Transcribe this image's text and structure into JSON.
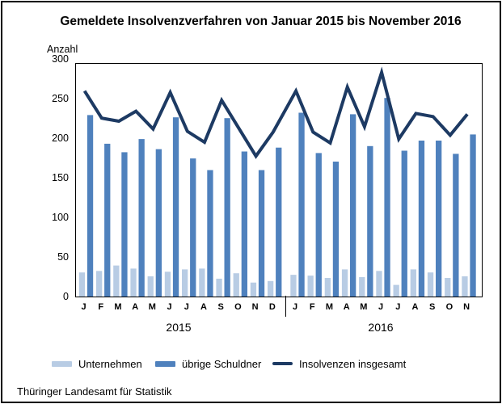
{
  "title": "Gemeldete Insolvenzverfahren von Januar 2015 bis November 2016",
  "y_axis": {
    "label": "Anzahl"
  },
  "footer": "Thüringer Landesamt für Statistik",
  "chart_data": {
    "type": "bar",
    "title": "Gemeldete Insolvenzverfahren von Januar 2015 bis November 2016",
    "ylabel": "Anzahl",
    "ylim": [
      0,
      300
    ],
    "yticks": [
      0,
      50,
      100,
      150,
      200,
      250,
      300
    ],
    "grid": false,
    "legend_position": "bottom",
    "categories": [
      "J",
      "F",
      "M",
      "A",
      "M",
      "J",
      "J",
      "A",
      "S",
      "O",
      "N",
      "D",
      "J",
      "F",
      "M",
      "A",
      "M",
      "J",
      "J",
      "A",
      "S",
      "O",
      "N"
    ],
    "year_groups": [
      {
        "label": "2015",
        "months": 12
      },
      {
        "label": "2016",
        "months": 11
      }
    ],
    "series": [
      {
        "name": "Unternehmen",
        "kind": "bar",
        "color": "#b8cce4",
        "values": [
          31,
          33,
          40,
          36,
          26,
          32,
          35,
          36,
          23,
          30,
          18,
          20,
          28,
          27,
          24,
          35,
          25,
          33,
          15,
          35,
          31,
          24,
          26
        ]
      },
      {
        "name": "übrige Schuldner",
        "kind": "bar",
        "color": "#4f81bd",
        "values": [
          234,
          197,
          186,
          203,
          190,
          231,
          178,
          163,
          230,
          187,
          163,
          192,
          237,
          185,
          174,
          235,
          194,
          256,
          188,
          201,
          201,
          184,
          209
        ]
      },
      {
        "name": "Insolvenzen insgesamt",
        "kind": "line",
        "color": "#1d3a63",
        "values": [
          265,
          230,
          226,
          239,
          216,
          263,
          213,
          199,
          253,
          217,
          181,
          212,
          265,
          212,
          198,
          270,
          219,
          289,
          203,
          236,
          232,
          208,
          235
        ]
      }
    ]
  }
}
